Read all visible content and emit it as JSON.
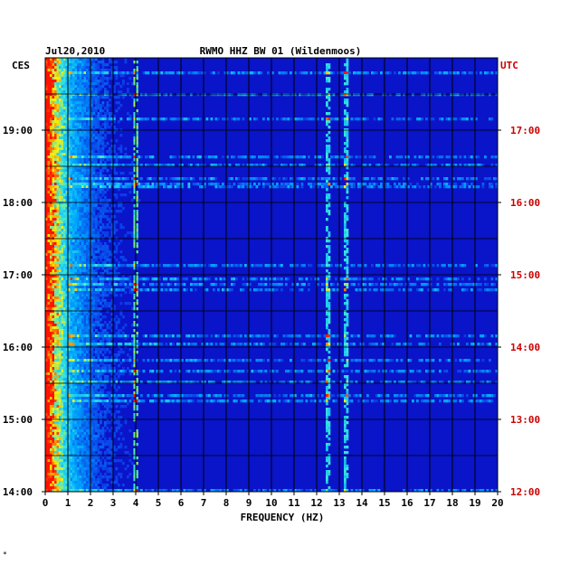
{
  "chart_data": {
    "type": "heatmap",
    "date": "Jul20,2010",
    "title": "RWMO HHZ BW 01 (Wildenmoos)",
    "xlabel": "FREQUENCY (HZ)",
    "xlim": [
      0,
      20
    ],
    "x_ticks": [
      "0",
      "1",
      "2",
      "3",
      "4",
      "5",
      "6",
      "7",
      "8",
      "9",
      "10",
      "11",
      "12",
      "13",
      "14",
      "15",
      "16",
      "17",
      "18",
      "19",
      "20"
    ],
    "left_axis_label": "CES",
    "right_axis_label": "UTC",
    "left_ticks": [
      "19:00",
      "18:00",
      "17:00",
      "16:00",
      "15:00",
      "14:00"
    ],
    "right_ticks": [
      "17:00",
      "16:00",
      "15:00",
      "14:00",
      "13:00",
      "12:00"
    ],
    "time_range_ces": [
      "14:00",
      "20:00"
    ],
    "colors": {
      "background_low": "#0a14c8",
      "mid": "#00b4ff",
      "high": "#ffff00",
      "peak": "#ff0000",
      "utc_label": "#cc0000"
    },
    "features": [
      {
        "note": "strong low-frequency energy",
        "freq_range_hz": [
          0,
          1
        ]
      },
      {
        "note": "persistent narrow line",
        "freq_hz": 12.5
      },
      {
        "note": "persistent narrow line",
        "freq_hz": 13.3
      },
      {
        "note": "intermittent line",
        "freq_hz": 4.0
      }
    ]
  },
  "footer_mark": "*"
}
